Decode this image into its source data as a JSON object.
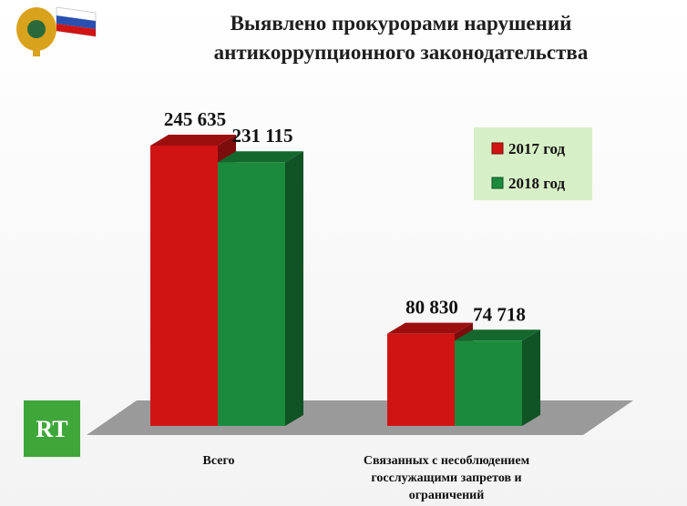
{
  "chart_data": {
    "type": "bar3d",
    "title": "Выявлено прокурорами нарушений антикоррупционного законодательства",
    "categories": [
      "Всего",
      "Связанных с несоблюдением госслужащими запретов и ограничений"
    ],
    "series": [
      {
        "name": "2017 год",
        "color": "#d01414",
        "values": [
          245635,
          80830
        ],
        "value_labels": [
          "245 635",
          "80 830"
        ]
      },
      {
        "name": "2018 год",
        "color": "#1b8a3c",
        "values": [
          231115,
          74718
        ],
        "value_labels": [
          "231 115",
          "74 718"
        ]
      }
    ],
    "legend": "upper right"
  },
  "logo_text": "RT"
}
